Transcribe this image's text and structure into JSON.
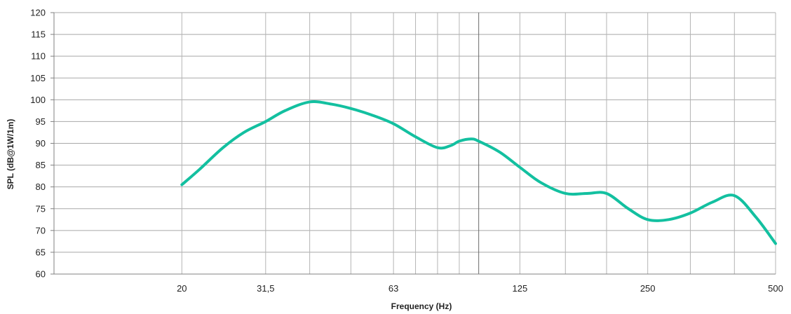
{
  "chart_data": {
    "type": "line",
    "title": "",
    "xlabel": "Frequency (Hz)",
    "ylabel": "SPL (dB@1W/1m)",
    "x_scale": "log",
    "xlim": [
      10,
      500
    ],
    "ylim": [
      60,
      120
    ],
    "y_ticks": [
      60,
      65,
      70,
      75,
      80,
      85,
      90,
      95,
      100,
      105,
      110,
      115,
      120
    ],
    "x_ticks": [
      {
        "value": 20,
        "label": "20"
      },
      {
        "value": 31.5,
        "label": "31,5"
      },
      {
        "value": 63,
        "label": "63"
      },
      {
        "value": 125,
        "label": "125"
      },
      {
        "value": 250,
        "label": "250"
      },
      {
        "value": 500,
        "label": "500"
      }
    ],
    "x_gridlines": [
      20,
      31.5,
      40,
      50,
      63,
      71,
      80,
      90,
      100,
      125,
      160,
      200,
      250,
      315,
      400,
      500
    ],
    "grid": true,
    "legend": "none",
    "line_color": "#13c0a0",
    "series": [
      {
        "x": [
          20,
          22,
          25,
          28,
          31.5,
          35,
          40,
          45,
          50,
          56,
          63,
          71,
          80,
          86,
          90,
          96,
          100,
          112,
          125,
          140,
          160,
          180,
          200,
          225,
          250,
          280,
          315,
          355,
          400,
          450,
          500
        ],
        "values": [
          80.5,
          84,
          89,
          92.5,
          95,
          97.5,
          99.5,
          99,
          98,
          96.5,
          94.5,
          91.5,
          89,
          89.5,
          90.5,
          91,
          90.5,
          88,
          84.5,
          81,
          78.5,
          78.5,
          78.5,
          75,
          72.5,
          72.5,
          74,
          76.5,
          78,
          73,
          67
        ]
      }
    ]
  }
}
